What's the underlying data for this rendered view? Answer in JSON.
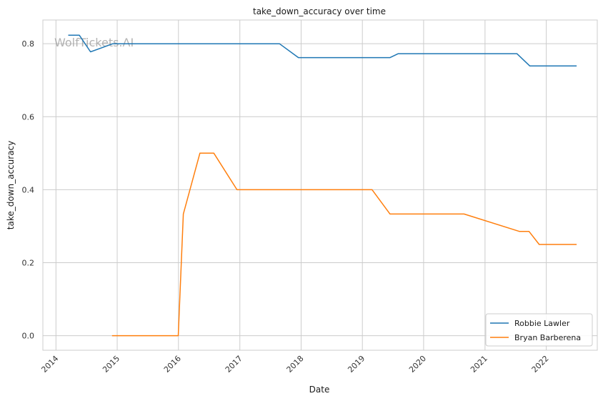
{
  "chart_data": {
    "type": "line",
    "title": "take_down_accuracy over time",
    "xlabel": "Date",
    "ylabel": "take_down_accuracy",
    "watermark": "WolfTickets.AI",
    "x_range": [
      "2013-10-15",
      "2022-11-01"
    ],
    "ylim": [
      -0.04,
      0.865
    ],
    "x_ticks": [
      "2014",
      "2015",
      "2016",
      "2017",
      "2018",
      "2019",
      "2020",
      "2021",
      "2022"
    ],
    "y_ticks": [
      "0.0",
      "0.2",
      "0.4",
      "0.6",
      "0.8"
    ],
    "grid": true,
    "legend_position": "lower-right",
    "series": [
      {
        "name": "Robbie Lawler",
        "color": "#1f77b4",
        "points": [
          [
            "2014-03-15",
            0.8235
          ],
          [
            "2014-05-20",
            0.8235
          ],
          [
            "2014-07-26",
            0.7778
          ],
          [
            "2014-12-06",
            0.8
          ],
          [
            "2015-07-11",
            0.8
          ],
          [
            "2016-01-30",
            0.8
          ],
          [
            "2016-07-30",
            0.8
          ],
          [
            "2017-08-25",
            0.8
          ],
          [
            "2017-12-16",
            0.7619
          ],
          [
            "2019-03-02",
            0.7619
          ],
          [
            "2019-06-15",
            0.7619
          ],
          [
            "2019-08-03",
            0.7727
          ],
          [
            "2020-08-29",
            0.7727
          ],
          [
            "2021-07-10",
            0.7727
          ],
          [
            "2021-09-25",
            0.7391
          ],
          [
            "2022-07-01",
            0.7391
          ]
        ]
      },
      {
        "name": "Bryan Barberena",
        "color": "#ff7f0e",
        "points": [
          [
            "2014-12-01",
            0.0
          ],
          [
            "2015-12-31",
            0.0
          ],
          [
            "2016-01-30",
            0.3333
          ],
          [
            "2016-05-08",
            0.5
          ],
          [
            "2016-07-30",
            0.5
          ],
          [
            "2016-12-15",
            0.4
          ],
          [
            "2019-02-28",
            0.4
          ],
          [
            "2019-06-15",
            0.3333
          ],
          [
            "2020-08-29",
            0.3333
          ],
          [
            "2021-07-24",
            0.2857
          ],
          [
            "2021-09-20",
            0.2857
          ],
          [
            "2021-11-20",
            0.25
          ],
          [
            "2022-07-01",
            0.25
          ]
        ]
      }
    ]
  }
}
